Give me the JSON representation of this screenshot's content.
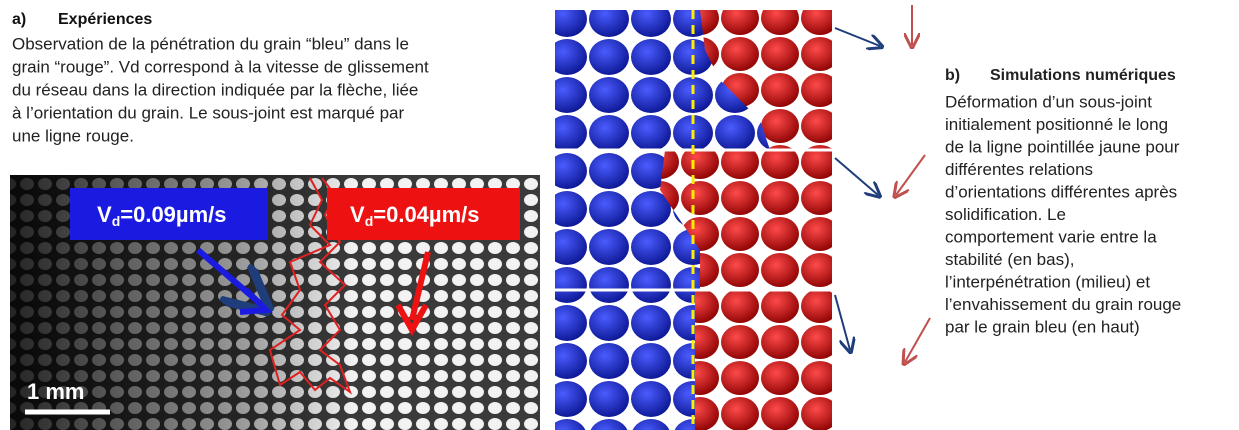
{
  "panel_a": {
    "label": "a)",
    "title": "Expériences",
    "lines": [
      "Observation de la pénétration du grain “bleu” dans le",
      "grain “rouge”. Vd correspond à la vitesse de glissement",
      "du réseau dans la direction indiquée par la flèche, liée",
      "à  l’orientation du grain. Le sous-joint est marqué par",
      "une ligne rouge."
    ],
    "velocity_blue": {
      "symbol": "V",
      "subscript": "d",
      "value": "=0.09µm/s"
    },
    "velocity_red": {
      "symbol": "V",
      "subscript": "d",
      "value": "=0.04µm/s"
    },
    "scale_bar": "1 mm"
  },
  "panel_b": {
    "label": "b)",
    "title": "Simulations numériques",
    "lines": [
      "Déformation d’un sous-joint",
      "initialement  positionné le long",
      "de la ligne pointillée  jaune pour",
      "différentes relations",
      "d’orientations différentes après",
      "solidification. Le",
      "comportement varie entre la",
      "stabilité (en bas),",
      "l’interpénétration (milieu) et",
      "l’envahissement du grain rouge",
      "par le grain bleu (en haut)"
    ]
  }
}
